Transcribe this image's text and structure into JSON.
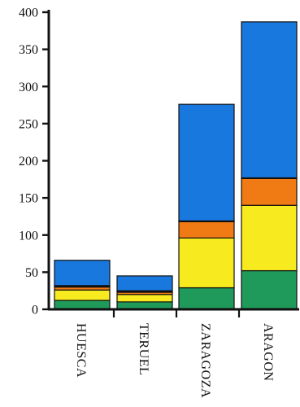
{
  "chart_data": {
    "type": "bar",
    "stacked": true,
    "title": "",
    "xlabel": "",
    "ylabel": "",
    "ylim": [
      0,
      400
    ],
    "yticks": [
      0,
      50,
      100,
      150,
      200,
      250,
      300,
      350,
      400
    ],
    "grid": false,
    "legend": "none",
    "categories": [
      "HUESCA",
      "TERUEL",
      "ZARAGOZA",
      "ARAGON"
    ],
    "series": [
      {
        "color": "#1f9a5a",
        "values": [
          12,
          10,
          29,
          52
        ]
      },
      {
        "color": "#f7ea1e",
        "values": [
          14,
          10,
          67,
          88
        ]
      },
      {
        "color": "#f07a14",
        "values": [
          4,
          3,
          22,
          36
        ]
      },
      {
        "color": "#111111",
        "values": [
          2,
          2,
          1,
          1
        ]
      },
      {
        "color": "#1878dd",
        "values": [
          34,
          20,
          157,
          210
        ]
      }
    ]
  }
}
